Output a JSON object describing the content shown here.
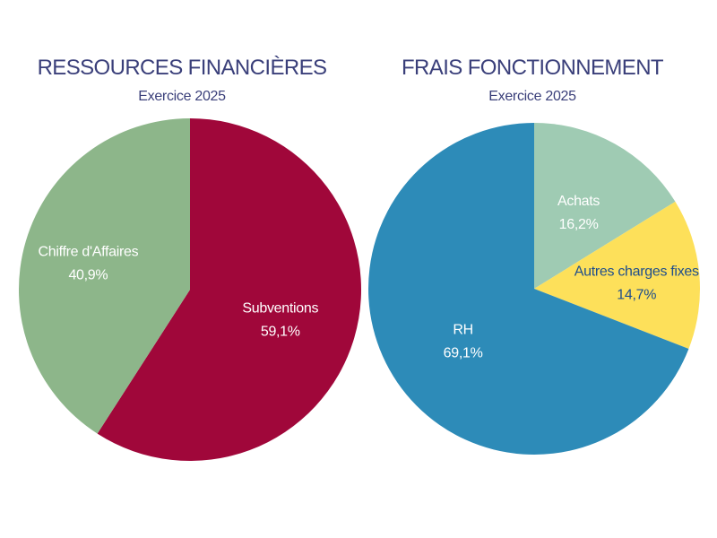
{
  "chart_data": [
    {
      "type": "pie",
      "title": "RESSOURCES FINANCIÈRES",
      "subtitle": "Exercice 2025",
      "start_angle_deg": 0,
      "direction": "clockwise",
      "slices": [
        {
          "label": "Subventions",
          "value": 59.1,
          "value_label": "59,1%",
          "color": "#a0073a",
          "label_color": "#ffffff"
        },
        {
          "label": "Chiffre d'Affaires",
          "value": 40.9,
          "value_label": "40,9%",
          "color": "#8db68a",
          "label_color": "#ffffff"
        }
      ]
    },
    {
      "type": "pie",
      "title": "FRAIS FONCTIONNEMENT",
      "subtitle": "Exercice 2025",
      "start_angle_deg": 0,
      "direction": "clockwise",
      "slices": [
        {
          "label": "Achats",
          "value": 16.2,
          "value_label": "16,2%",
          "color": "#9fcbb3",
          "label_color": "#ffffff"
        },
        {
          "label": "Autres charges fixes",
          "value": 14.7,
          "value_label": "14,7%",
          "color": "#fde05a",
          "label_color": "#1f4e8c"
        },
        {
          "label": "RH",
          "value": 69.1,
          "value_label": "69,1%",
          "color": "#2d8bb8",
          "label_color": "#ffffff"
        }
      ]
    }
  ]
}
